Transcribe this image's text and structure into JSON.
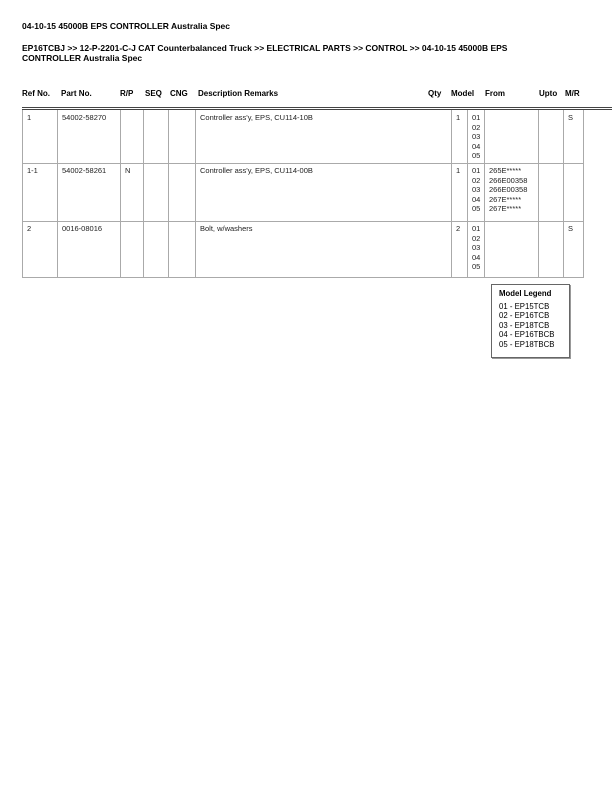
{
  "title": "04-10-15 45000B EPS CONTROLLER Australia Spec",
  "breadcrumb": "EP16TCBJ >> 12-P-2201-C-J CAT Counterbalanced Truck >> ELECTRICAL PARTS >> CONTROL >> 04-10-15 45000B EPS CONTROLLER Australia Spec",
  "columns": [
    "Ref No.",
    "Part No.",
    "R/P",
    "SEQ",
    "CNG",
    "Description Remarks",
    "Qty",
    "Model",
    "From",
    "Upto",
    "M/R"
  ],
  "rows": [
    {
      "ref": "1",
      "part": "54002-58270",
      "rp": "",
      "seq": "",
      "cng": "",
      "desc": "Controller ass'y, EPS, CU114-10B",
      "qty": "1",
      "models": [
        "01",
        "02",
        "03",
        "04",
        "05"
      ],
      "from": [],
      "upto": "",
      "mr": "S"
    },
    {
      "ref": "1-1",
      "part": "54002-58261",
      "rp": "N",
      "seq": "",
      "cng": "",
      "desc": "Controller ass'y, EPS, CU114-00B",
      "qty": "1",
      "models": [
        "01",
        "02",
        "03",
        "04",
        "05"
      ],
      "from": [
        "265E*****",
        "266E00358",
        "266E00358",
        "267E*****",
        "267E*****"
      ],
      "upto": "",
      "mr": ""
    },
    {
      "ref": "2",
      "part": "0016-08016",
      "rp": "",
      "seq": "",
      "cng": "",
      "desc": "Bolt, w/washers",
      "qty": "2",
      "models": [
        "01",
        "02",
        "03",
        "04",
        "05"
      ],
      "from": [],
      "upto": "",
      "mr": "S"
    }
  ],
  "legend": {
    "title": "Model Legend",
    "items": [
      "01 - EP15TCB",
      "02 - EP16TCB",
      "03 - EP18TCB",
      "04 - EP16TBCB",
      "05 - EP18TBCB"
    ]
  }
}
